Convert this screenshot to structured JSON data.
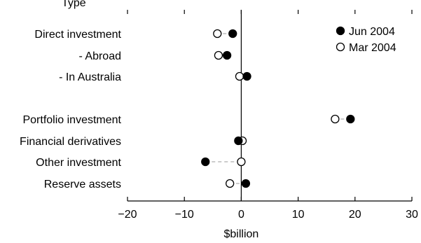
{
  "header": {
    "title_fragment": "Type"
  },
  "chart_data": {
    "type": "scatter",
    "orientation": "horizontal-dot",
    "categories": [
      "Direct investment",
      "- Abroad",
      "- In Australia",
      "",
      "Portfolio investment",
      "Financial derivatives",
      "Other investment",
      "Reserve assets"
    ],
    "series": [
      {
        "name": "Jun 2004",
        "marker": "filled-circle",
        "values": [
          -1.5,
          -2.5,
          1.0,
          null,
          19.2,
          -0.5,
          -6.3,
          0.8
        ]
      },
      {
        "name": "Mar 2004",
        "marker": "open-circle",
        "values": [
          -4.2,
          -4.0,
          -0.3,
          null,
          16.5,
          0.2,
          0.0,
          -2.0
        ]
      }
    ],
    "xlabel": "$billion",
    "xlim": [
      -20,
      30
    ],
    "xticks": [
      -20,
      -10,
      0,
      10,
      20,
      30
    ],
    "xtick_labels": [
      "−20",
      "−10",
      "0",
      "10",
      "20",
      "30"
    ],
    "connector": "dashed-grey",
    "legend": "top-right",
    "grid": false,
    "colors": {
      "filled": "#000000",
      "open_fill": "#ffffff",
      "connector": "#999999"
    }
  }
}
